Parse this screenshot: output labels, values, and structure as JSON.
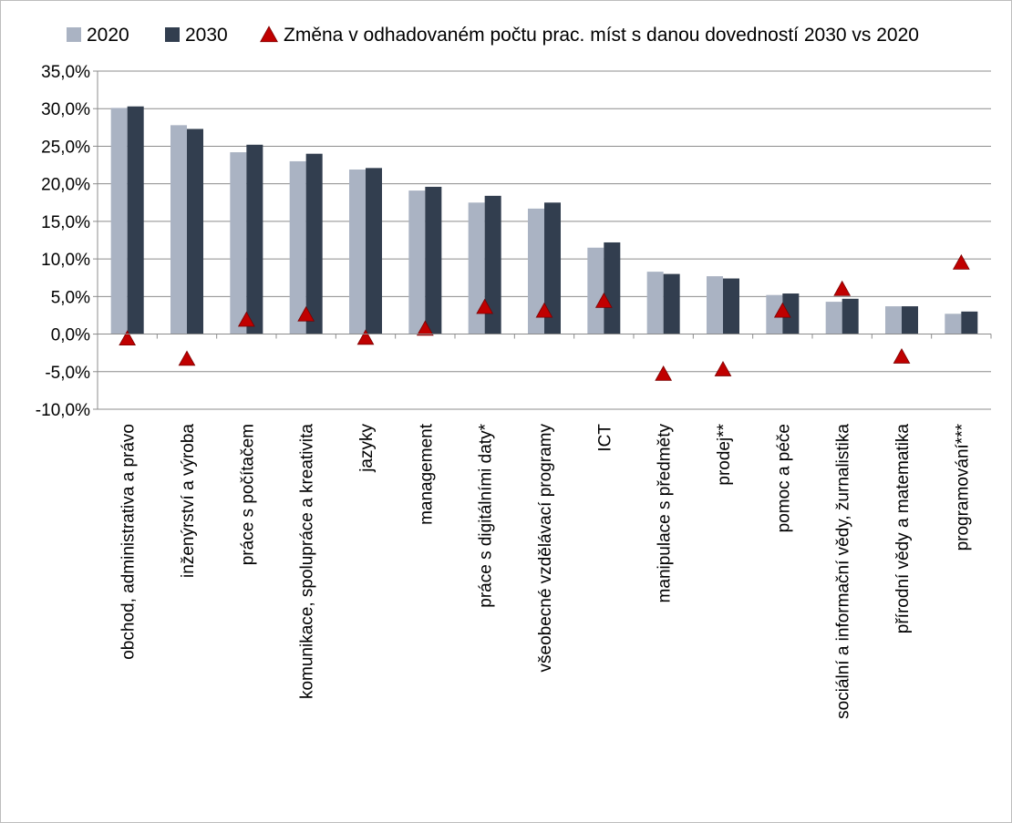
{
  "chart_data": {
    "type": "bar",
    "title": "",
    "xlabel": "",
    "ylabel": "",
    "ylim": [
      -10,
      35
    ],
    "y_tick_step": 5,
    "y_tick_labels": [
      "35,0%",
      "30,0%",
      "25,0%",
      "20,0%",
      "15,0%",
      "10,0%",
      "5,0%",
      "0,0%",
      "-5,0%",
      "-10,0%"
    ],
    "grid": true,
    "legend_position": "top",
    "categories": [
      "obchod, administrativa a právo",
      "inženýrství a výroba",
      "práce s počítačem",
      "komunikace, spolupráce a kreativita",
      "jazyky",
      "management",
      "práce s digitálními daty*",
      "všeobecné vzdělávací programy",
      "ICT",
      "manipulace s předměty",
      "prodej**",
      "pomoc a péče",
      "sociální a informační vědy, žurnalistika",
      "přírodní vědy a matematika",
      "programování***"
    ],
    "series": [
      {
        "name": "2020",
        "kind": "bar",
        "color": "#aab3c3",
        "values": [
          30.1,
          27.8,
          24.2,
          23.0,
          21.9,
          19.1,
          17.5,
          16.7,
          11.5,
          8.3,
          7.7,
          5.2,
          4.3,
          3.7,
          2.7
        ]
      },
      {
        "name": "2030",
        "kind": "bar",
        "color": "#323e4f",
        "values": [
          30.3,
          27.3,
          25.2,
          24.0,
          22.1,
          19.6,
          18.4,
          17.5,
          12.2,
          8.0,
          7.4,
          5.4,
          4.7,
          3.7,
          3.0
        ]
      },
      {
        "name": "Změna v odhadovaném počtu prac. míst s danou dovedností 2030 vs 2020",
        "kind": "marker",
        "color": "#c00000",
        "values": [
          -0.7,
          -3.4,
          1.8,
          2.5,
          -0.6,
          0.6,
          3.5,
          3.0,
          4.3,
          -5.4,
          -4.8,
          3.0,
          5.9,
          -3.1,
          9.4
        ]
      }
    ]
  }
}
